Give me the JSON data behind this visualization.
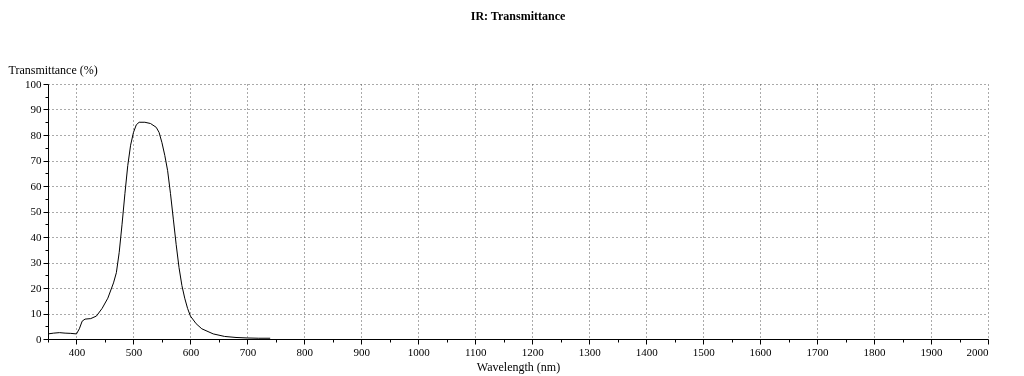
{
  "chart_data": {
    "type": "line",
    "title": "IR: Transmittance",
    "xlabel": "Wavelength (nm)",
    "ylabel": "Transmittance (%)",
    "x": [
      350,
      360,
      370,
      380,
      390,
      400,
      405,
      410,
      415,
      425,
      435,
      445,
      455,
      465,
      470,
      475,
      480,
      485,
      490,
      495,
      500,
      505,
      510,
      520,
      530,
      540,
      545,
      550,
      555,
      560,
      565,
      570,
      575,
      580,
      585,
      590,
      595,
      600,
      610,
      620,
      640,
      660,
      680,
      700,
      720,
      740
    ],
    "series": [
      {
        "color": "#000000",
        "values": [
          2,
          2.3,
          2.5,
          2.3,
          2.2,
          2,
          4,
          7,
          7.8,
          8,
          9,
          12,
          16,
          22,
          26,
          34,
          45,
          57,
          68,
          76,
          81,
          84,
          85,
          85,
          84.5,
          83,
          81,
          77,
          72,
          66,
          57,
          47,
          37,
          28,
          21,
          16,
          12,
          9,
          6,
          4,
          2,
          1,
          0.6,
          0.4,
          0.3,
          0.3
        ]
      }
    ],
    "xlim": [
      350,
      2000
    ],
    "xticks": [
      {
        "value": 350,
        "label": null
      },
      400,
      {
        "value": 450,
        "label": null
      },
      500,
      {
        "value": 550,
        "label": null
      },
      600,
      {
        "value": 650,
        "label": null
      },
      700,
      {
        "value": 750,
        "label": null
      },
      800,
      {
        "value": 850,
        "label": null
      },
      900,
      {
        "value": 950,
        "label": null
      },
      1000,
      {
        "value": 1050,
        "label": null
      },
      1100,
      {
        "value": 1150,
        "label": null
      },
      1200,
      {
        "value": 1250,
        "label": null
      },
      1300,
      {
        "value": 1350,
        "label": null
      },
      1400,
      {
        "value": 1450,
        "label": null
      },
      1500,
      {
        "value": 1550,
        "label": null
      },
      1600,
      {
        "value": 1650,
        "label": null
      },
      1700,
      {
        "value": 1750,
        "label": null
      },
      1800,
      {
        "value": 1850,
        "label": null
      },
      1900,
      {
        "value": 1950,
        "label": null
      },
      2000
    ],
    "ylim": [
      0,
      100
    ],
    "yticks": [
      0,
      {
        "value": 5,
        "label": null
      },
      10,
      {
        "value": 15,
        "label": null
      },
      20,
      {
        "value": 25,
        "label": null
      },
      30,
      {
        "value": 35,
        "label": null
      },
      40,
      {
        "value": 45,
        "label": null
      },
      50,
      {
        "value": 55,
        "label": null
      },
      60,
      {
        "value": 65,
        "label": null
      },
      70,
      {
        "value": 75,
        "label": null
      },
      80,
      {
        "value": 85,
        "label": null
      },
      90,
      {
        "value": 95,
        "label": null
      },
      100
    ],
    "grid": true,
    "line_style": "solid",
    "marker": "none"
  }
}
